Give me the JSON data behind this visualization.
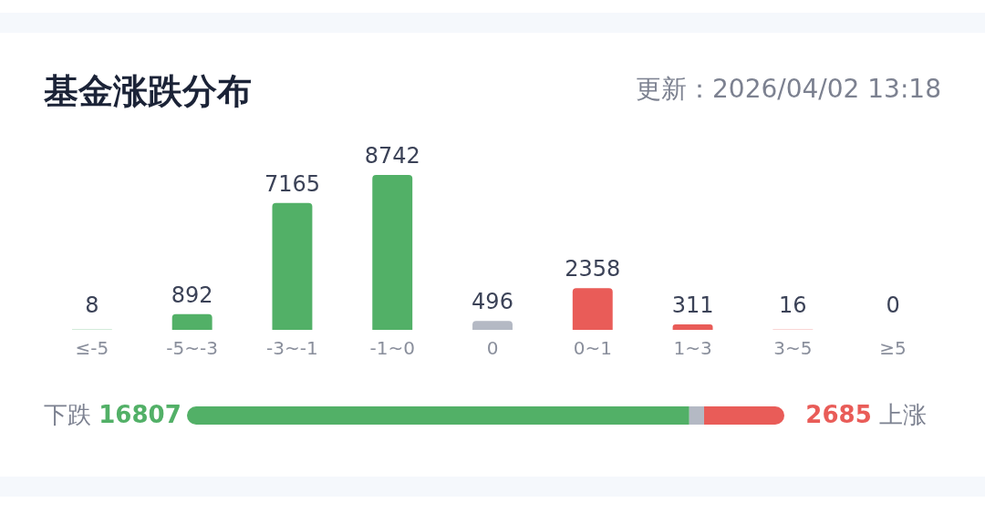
{
  "chart_data": [
    {
      "type": "bar",
      "title": "基金涨跌分布",
      "annotations": [
        "更新：2026/04/02 13:18"
      ],
      "categories": [
        "≤-5",
        "-5~-3",
        "-3~-1",
        "-1~0",
        "0",
        "0~1",
        "1~3",
        "3~5",
        "≥5"
      ],
      "values": [
        8,
        892,
        7165,
        8742,
        496,
        2358,
        311,
        16,
        0
      ],
      "colors": [
        "#52b067",
        "#52b067",
        "#52b067",
        "#52b067",
        "#b4b9c4",
        "#e95c58",
        "#e95c58",
        "#e95c58",
        "#e95c58"
      ],
      "data_labels": true
    },
    {
      "type": "bar",
      "orientation": "horizontal",
      "stacked": true,
      "categories": [
        null
      ],
      "annotations": [
        "下跌",
        "上涨"
      ],
      "series": [
        {
          "color": "#52b067",
          "values": [
            16807
          ],
          "value_labels": [
            "16807"
          ]
        },
        {
          "color": "#b4b9c4",
          "values": [
            496
          ],
          "value_labels": [
            null
          ]
        },
        {
          "color": "#e95c58",
          "values": [
            2685
          ],
          "value_labels": [
            "2685"
          ]
        }
      ]
    }
  ]
}
